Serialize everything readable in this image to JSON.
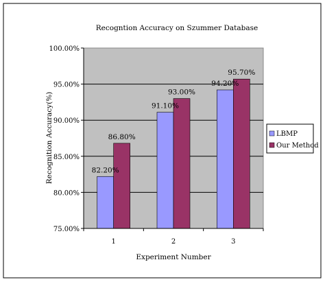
{
  "chart_data": {
    "type": "bar",
    "title": "Recogntion Accuracy on Szummer Database",
    "xlabel": "Experiment Number",
    "ylabel": "Recognition Accuracy(%)",
    "categories": [
      "1",
      "2",
      "3"
    ],
    "series": [
      {
        "name": "LBMP",
        "values": [
          82.2,
          91.1,
          94.2
        ],
        "labels": [
          "82.20%",
          "91.10%",
          "94.20%"
        ],
        "color": "#9999ff"
      },
      {
        "name": "Our Method",
        "values": [
          86.8,
          93.0,
          95.7
        ],
        "labels": [
          "86.80%",
          "93.00%",
          "95.70%"
        ],
        "color": "#993366"
      }
    ],
    "ylim": [
      75,
      100
    ],
    "yticks": [
      75,
      80,
      85,
      90,
      95,
      100
    ],
    "ytick_labels": [
      "75.00%",
      "80.00%",
      "85.00%",
      "90.00%",
      "95.00%",
      "100.00%"
    ],
    "grid": true,
    "plot_background": "#c0c0c0",
    "legend_position": "right"
  }
}
